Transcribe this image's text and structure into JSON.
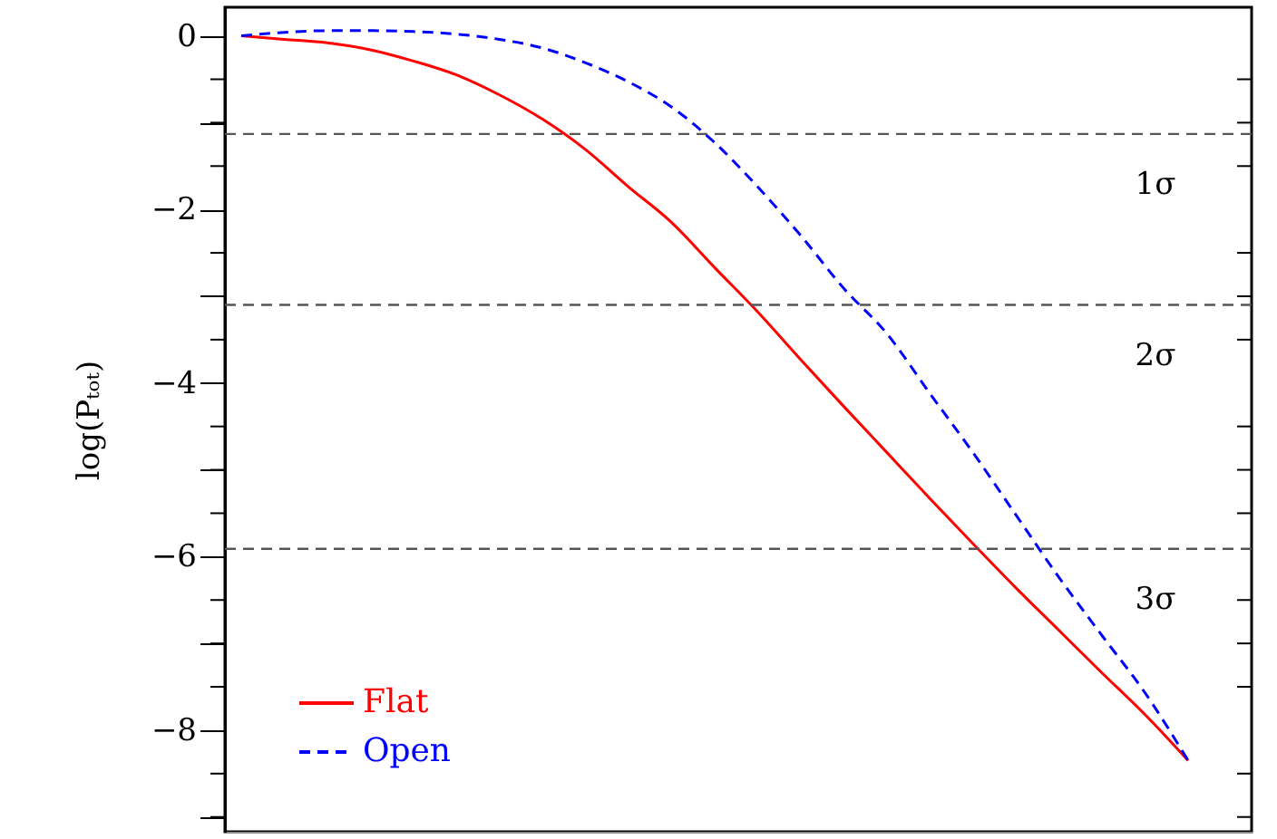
{
  "chart_data": {
    "type": "line",
    "ylabel": "log(Pₜₒₜ)",
    "categories": [
      null,
      null,
      null,
      null,
      null,
      null,
      null,
      null,
      null,
      null,
      null,
      null,
      null,
      null,
      null,
      null,
      null,
      null,
      null,
      null,
      null,
      null,
      null
    ],
    "series": [
      {
        "name": "Flat",
        "color": "#ff0000",
        "line_style": "solid",
        "values": [
          0,
          -0.04,
          -0.08,
          -0.16,
          -0.29,
          -0.45,
          -0.68,
          -0.96,
          -1.31,
          -1.74,
          -2.15,
          -2.67,
          -3.18,
          -3.73,
          -4.27,
          -4.8,
          -5.33,
          -5.85,
          -6.36,
          -6.85,
          -7.34,
          -7.82,
          -8.35
        ]
      },
      {
        "name": "Open",
        "color": "#0000ff",
        "line_style": "dashed",
        "values": [
          0,
          0.04,
          0.06,
          0.06,
          0.05,
          0.02,
          -0.04,
          -0.14,
          -0.31,
          -0.53,
          -0.82,
          -1.23,
          -1.74,
          -2.3,
          -2.91,
          -3.43,
          -4.12,
          -4.8,
          -5.52,
          -6.24,
          -6.91,
          -7.57,
          -8.35
        ]
      }
    ],
    "ylim": [
      -9.17,
      0.33
    ],
    "yticks": [
      0,
      {
        "value": -0.5,
        "label": null
      },
      {
        "value": -1,
        "label": null
      },
      {
        "value": -1.5,
        "label": null
      },
      -2,
      {
        "value": -2.5,
        "label": null
      },
      {
        "value": -3,
        "label": null
      },
      {
        "value": -3.5,
        "label": null
      },
      -4,
      {
        "value": -4.5,
        "label": null
      },
      {
        "value": -5,
        "label": null
      },
      {
        "value": -5.5,
        "label": null
      },
      -6,
      {
        "value": -6.5,
        "label": null
      },
      {
        "value": -7,
        "label": null
      },
      {
        "value": -7.5,
        "label": null
      },
      -8,
      {
        "value": -8.5,
        "label": null
      },
      {
        "value": -9,
        "label": null
      }
    ],
    "ref_lines": [
      {
        "axis": "y",
        "value": -1.13,
        "label": "1σ",
        "color": "#555555",
        "line_style": "dashed"
      },
      {
        "axis": "y",
        "value": -3.1,
        "label": "2σ",
        "color": "#555555",
        "line_style": "dashed"
      },
      {
        "axis": "y",
        "value": -5.91,
        "label": "3σ",
        "color": "#555555",
        "line_style": "dashed"
      }
    ],
    "grid": false,
    "legend": "bottom left",
    "marker": "none",
    "tick_labels": "y"
  }
}
